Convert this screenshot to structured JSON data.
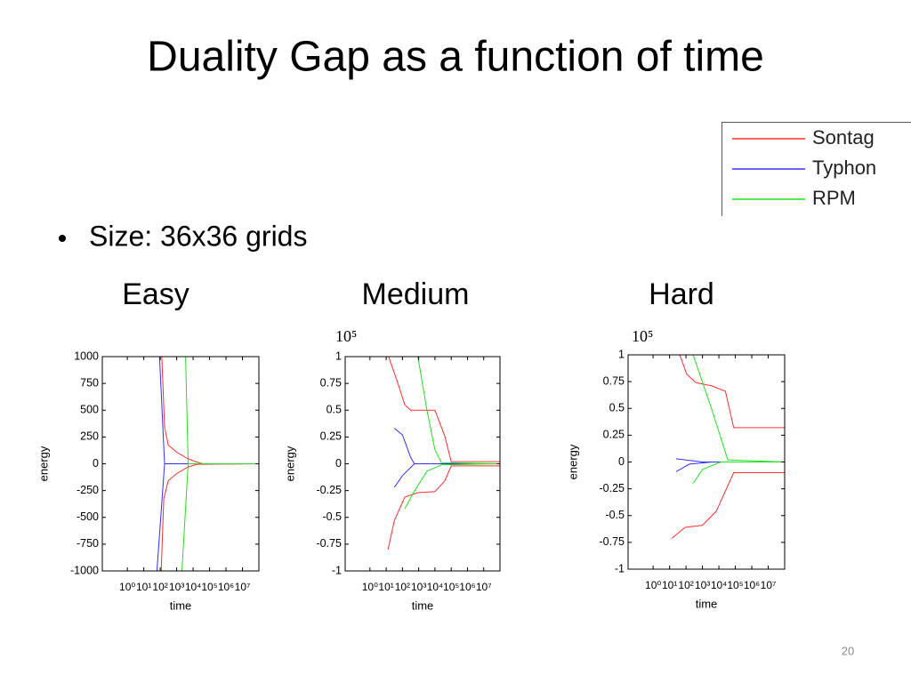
{
  "slide": {
    "title": "Duality Gap as a function of time",
    "bullet": "Size: 36x36 grids",
    "page_number": "20"
  },
  "legend": [
    {
      "name": "Sontag",
      "color": "#ff3030"
    },
    {
      "name": "Typhon",
      "color": "#3030ff"
    },
    {
      "name": "RPM",
      "color": "#20e020"
    }
  ],
  "chart_data": [
    {
      "type": "line",
      "title": "Easy",
      "xlabel": "time",
      "ylabel": "energy",
      "xscale": "log",
      "xlim": [
        0.03,
        100000000
      ],
      "xticks": [
        {
          "value": 1,
          "label": "10⁰"
        },
        {
          "value": 10,
          "label": "10¹"
        },
        {
          "value": 100,
          "label": "10²"
        },
        {
          "value": 1000,
          "label": "10³"
        },
        {
          "value": 10000,
          "label": "10⁴"
        },
        {
          "value": 100000,
          "label": "10⁵"
        },
        {
          "value": 1000000,
          "label": "10⁶"
        },
        {
          "value": 10000000,
          "label": "10⁷"
        }
      ],
      "ylim": [
        -1000,
        1000
      ],
      "yticks": [
        -1000,
        -750,
        -500,
        -250,
        0,
        250,
        500,
        750,
        1000
      ],
      "series": [
        {
          "color": "#ff3030",
          "x": [
            125,
            185,
            310,
            1000,
            4500,
            16000,
            40000,
            100000000
          ],
          "values": [
            1000,
            340,
            174,
            108,
            50,
            17,
            0,
            0
          ]
        },
        {
          "color": "#ff3030",
          "x": [
            115,
            165,
            310,
            1000,
            4500,
            16000,
            100000000
          ],
          "values": [
            -1000,
            -324,
            -158,
            -91,
            -33,
            -5,
            0
          ]
        },
        {
          "color": "#3030ff",
          "x": [
            90,
            185,
            100000000
          ],
          "values": [
            1000,
            0,
            0
          ]
        },
        {
          "color": "#3030ff",
          "x": [
            63,
            185
          ],
          "values": [
            -1000,
            0
          ]
        },
        {
          "color": "#20e020",
          "x": [
            3500,
            5000,
            100000000
          ],
          "values": [
            1000,
            0,
            0
          ]
        },
        {
          "color": "#20e020",
          "x": [
            2100,
            5000
          ],
          "values": [
            -1000,
            0
          ]
        }
      ]
    },
    {
      "type": "line",
      "title": "Medium",
      "xlabel": "time",
      "ylabel": "energy",
      "xscale": "log",
      "multiplier": "10⁵",
      "xlim": [
        0.03,
        100000000
      ],
      "xticks": [
        {
          "value": 1,
          "label": "10⁰"
        },
        {
          "value": 10,
          "label": "10¹"
        },
        {
          "value": 100,
          "label": "10²"
        },
        {
          "value": 1000,
          "label": "10³"
        },
        {
          "value": 10000,
          "label": "10⁴"
        },
        {
          "value": 100000,
          "label": "10⁵"
        },
        {
          "value": 1000000,
          "label": "10⁶"
        },
        {
          "value": 10000000,
          "label": "10⁷"
        }
      ],
      "ylim": [
        -1,
        1
      ],
      "yticks": [
        -1,
        -0.75,
        -0.5,
        -0.25,
        0,
        0.25,
        0.5,
        0.75,
        1
      ],
      "series": [
        {
          "color": "#ff3030",
          "x": [
            14,
            50,
            140,
            320,
            10000,
            40000,
            100000,
            100000000
          ],
          "values": [
            1,
            0.76,
            0.55,
            0.5,
            0.5,
            0.26,
            0.02,
            0.02
          ]
        },
        {
          "color": "#ff3030",
          "x": [
            13,
            32,
            140,
            890,
            10000,
            40000,
            100000,
            100000000
          ],
          "values": [
            -0.8,
            -0.53,
            -0.31,
            -0.27,
            -0.26,
            -0.16,
            -0.02,
            -0.02
          ]
        },
        {
          "color": "#3030ff",
          "x": [
            32,
            100,
            320,
            540,
            100000000
          ],
          "values": [
            0.33,
            0.27,
            0.06,
            0,
            0
          ]
        },
        {
          "color": "#3030ff",
          "x": [
            32,
            100,
            540
          ],
          "values": [
            -0.22,
            -0.11,
            0
          ]
        },
        {
          "color": "#20e020",
          "x": [
            890,
            3200,
            10000,
            25000,
            100000000
          ],
          "values": [
            1,
            0.5,
            0.13,
            0.01,
            0
          ]
        },
        {
          "color": "#20e020",
          "x": [
            140,
            480,
            3200,
            25000,
            100000000
          ],
          "values": [
            -0.42,
            -0.27,
            -0.07,
            -0.01,
            0
          ]
        }
      ]
    },
    {
      "type": "line",
      "title": "Hard",
      "xlabel": "time",
      "ylabel": "energy",
      "xscale": "log",
      "multiplier": "10⁵",
      "xlim": [
        0.03,
        100000000
      ],
      "xticks": [
        {
          "value": 1,
          "label": "10⁰"
        },
        {
          "value": 10,
          "label": "10¹"
        },
        {
          "value": 100,
          "label": "10²"
        },
        {
          "value": 1000,
          "label": "10³"
        },
        {
          "value": 10000,
          "label": "10⁴"
        },
        {
          "value": 100000,
          "label": "10⁵"
        },
        {
          "value": 1000000,
          "label": "10⁶"
        },
        {
          "value": 10000000,
          "label": "10⁷"
        }
      ],
      "ylim": [
        -1,
        1
      ],
      "yticks": [
        -1,
        -0.75,
        -0.5,
        -0.25,
        0,
        0.25,
        0.5,
        0.75,
        1
      ],
      "series": [
        {
          "color": "#ff3030",
          "x": [
            42,
            110,
            400,
            3700,
            25000,
            79000,
            100000000
          ],
          "values": [
            1,
            0.82,
            0.74,
            0.71,
            0.66,
            0.32,
            0.32
          ]
        },
        {
          "color": "#ff3030",
          "x": [
            14,
            89,
            1000,
            6900,
            79000,
            100000000
          ],
          "values": [
            -0.71,
            -0.61,
            -0.59,
            -0.46,
            -0.1,
            -0.1
          ]
        },
        {
          "color": "#3030ff",
          "x": [
            25,
            1000,
            100000000
          ],
          "values": [
            0.03,
            0,
            0
          ]
        },
        {
          "color": "#3030ff",
          "x": [
            25,
            160,
            3700,
            100000000
          ],
          "values": [
            -0.09,
            -0.02,
            0,
            0
          ]
        },
        {
          "color": "#20e020",
          "x": [
            270,
            3700,
            35000,
            100000000
          ],
          "values": [
            1,
            0.49,
            0.02,
            0
          ]
        },
        {
          "color": "#20e020",
          "x": [
            270,
            1000,
            13000,
            100000000
          ],
          "values": [
            -0.2,
            -0.07,
            0,
            0
          ]
        }
      ]
    }
  ]
}
